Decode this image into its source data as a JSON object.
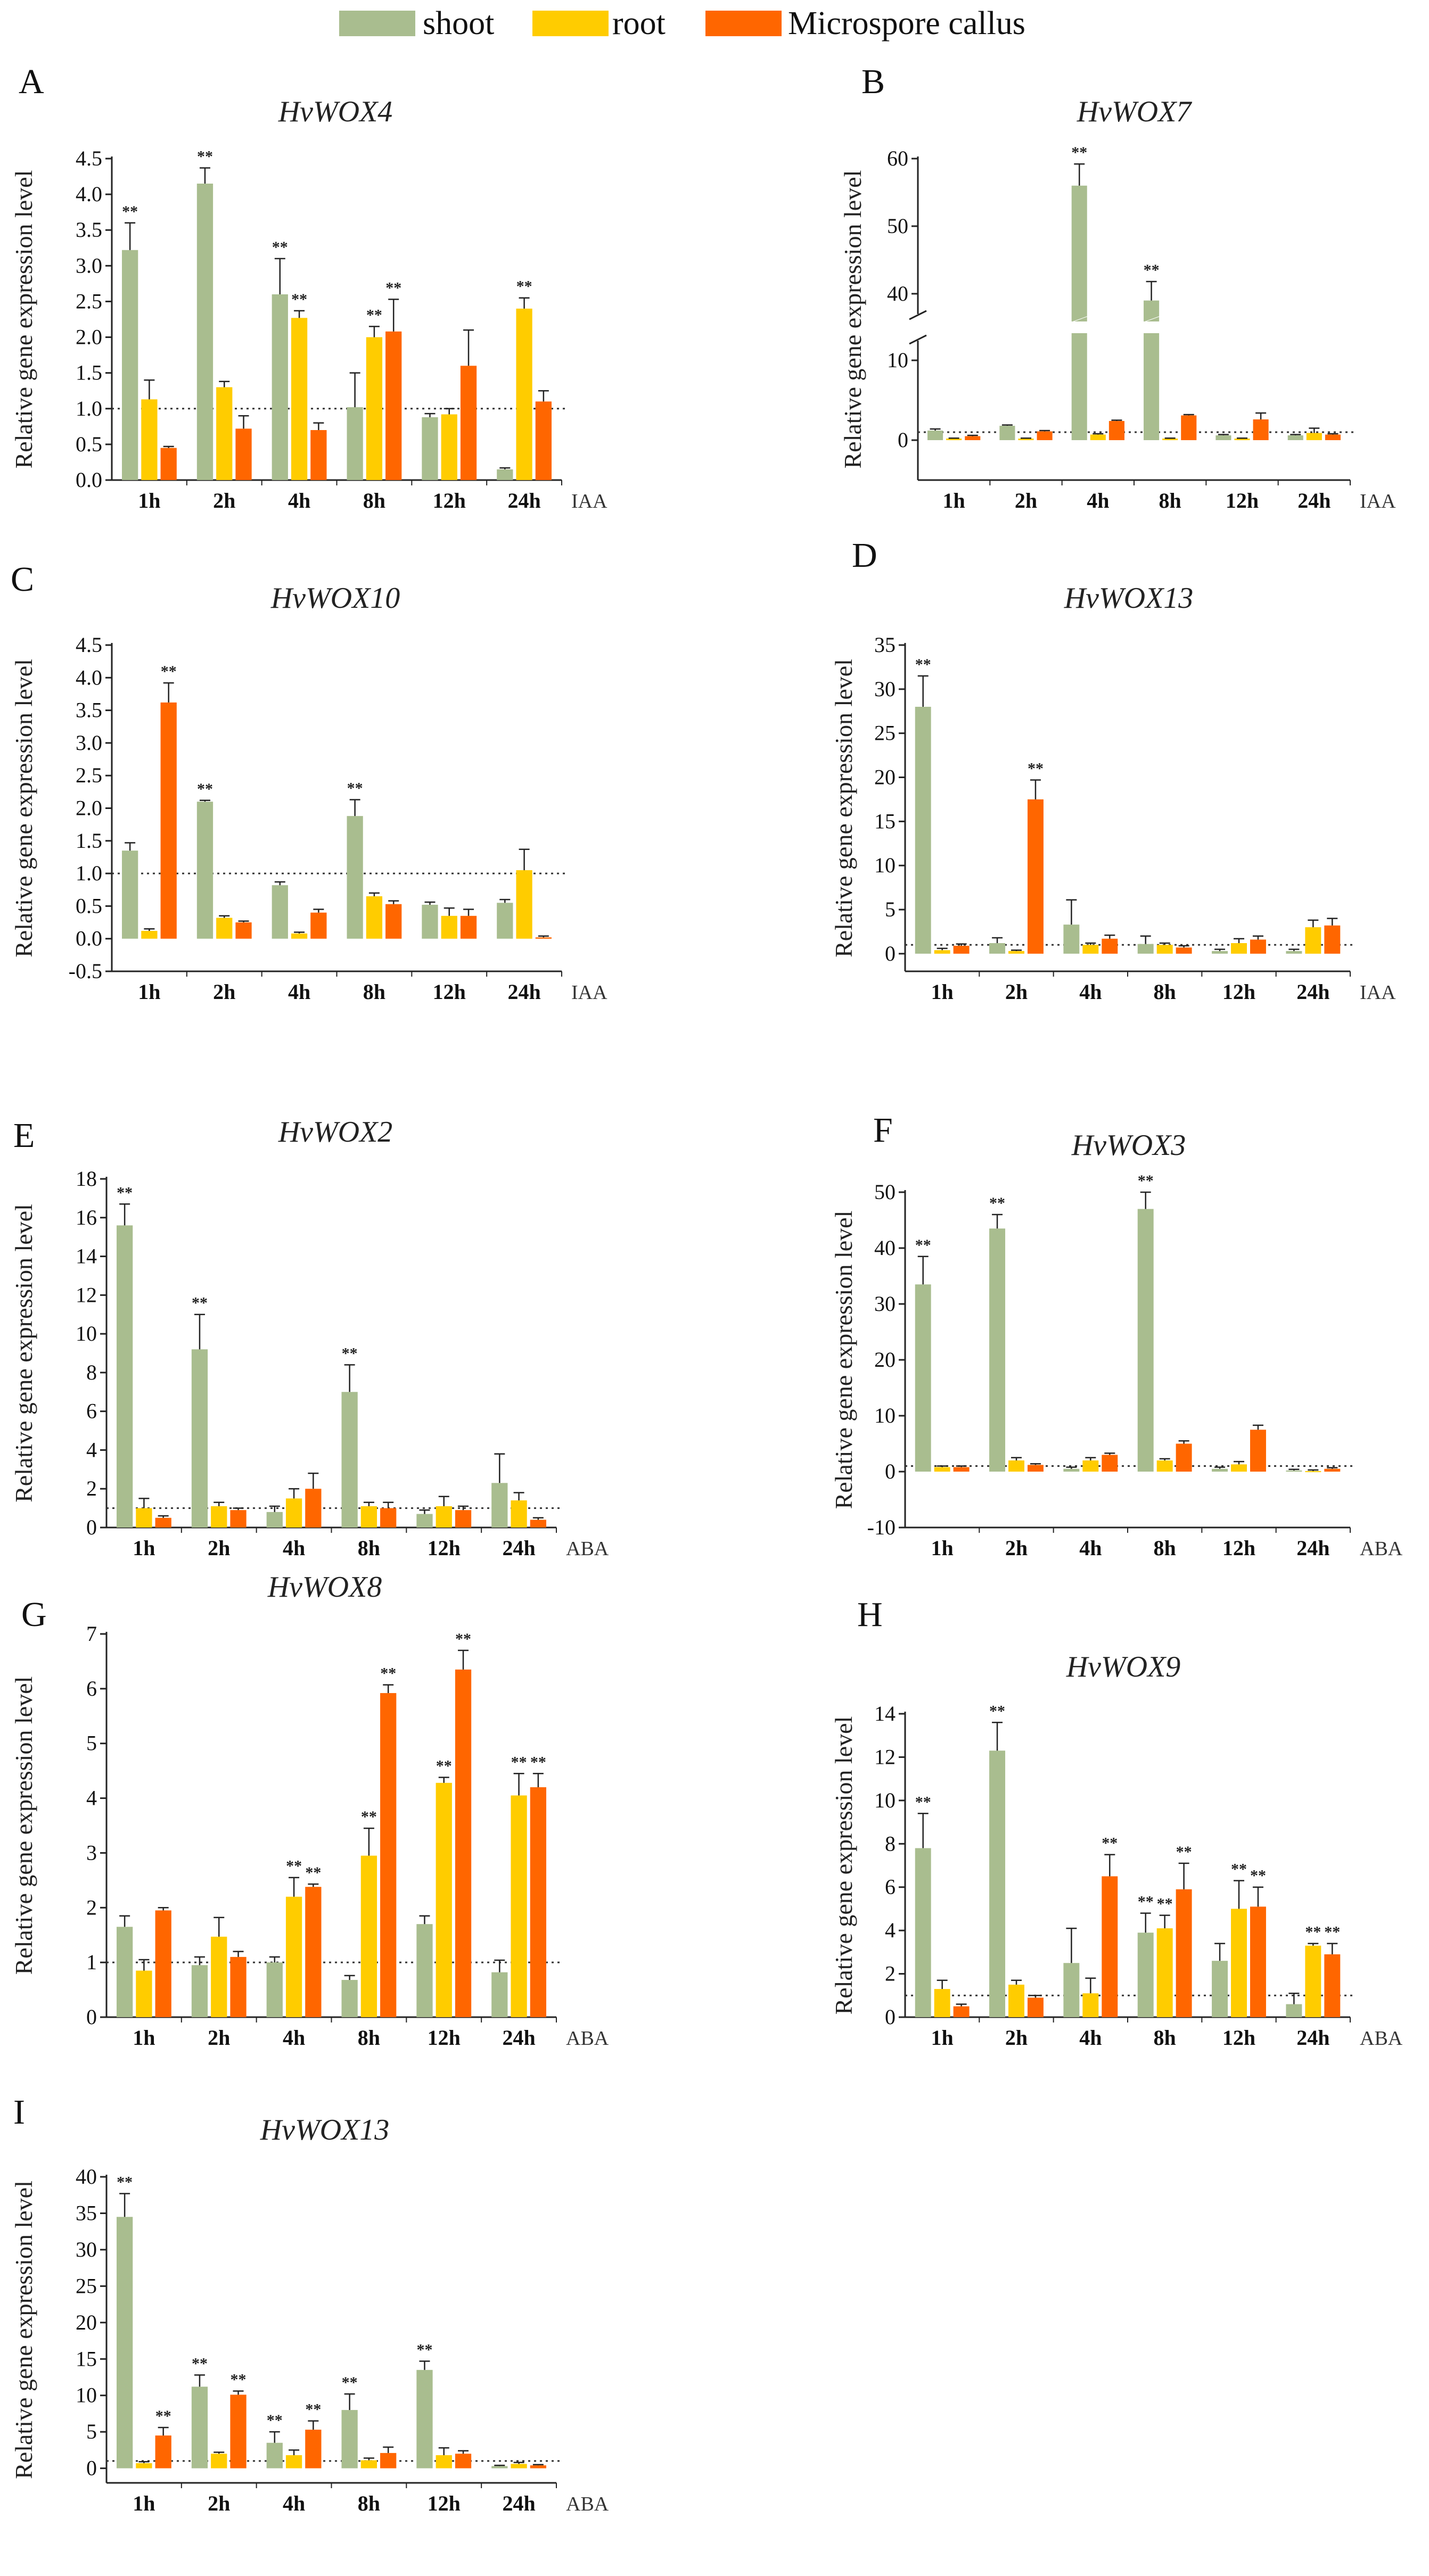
{
  "legend": [
    {
      "label": "shoot",
      "color": "#A9BD8F"
    },
    {
      "label": "root",
      "color": "#FFCC00"
    },
    {
      "label": "Microspore callus",
      "color": "#FF6600"
    }
  ],
  "chart_data": [
    {
      "type": "bar",
      "panel": "A",
      "title": "HvWOX4",
      "treatment": "IAA",
      "ylabel": "Relative gene expression level",
      "categories": [
        "1h",
        "2h",
        "4h",
        "8h",
        "12h",
        "24h"
      ],
      "ylim": [
        0,
        4.5
      ],
      "yticks": [
        "0.0",
        "0.5",
        "1.0",
        "1.5",
        "2.0",
        "2.5",
        "3.0",
        "3.5",
        "4.0",
        "4.5"
      ],
      "series": [
        {
          "name": "shoot",
          "values": [
            3.22,
            4.15,
            2.6,
            1.02,
            0.88,
            0.15
          ],
          "errors": [
            0.38,
            0.22,
            0.5,
            0.48,
            0.05,
            0.02
          ],
          "sig": [
            "**",
            "**",
            "**",
            "",
            "",
            ""
          ]
        },
        {
          "name": "root",
          "values": [
            1.13,
            1.3,
            2.27,
            2.0,
            0.92,
            2.4
          ],
          "errors": [
            0.27,
            0.08,
            0.1,
            0.15,
            0.08,
            0.15
          ],
          "sig": [
            "",
            "",
            "**",
            "**",
            "",
            "**"
          ]
        },
        {
          "name": "Microspore callus",
          "values": [
            0.45,
            0.72,
            0.7,
            2.08,
            1.6,
            1.1
          ],
          "errors": [
            0.02,
            0.18,
            0.1,
            0.45,
            0.5,
            0.15
          ],
          "sig": [
            "",
            "",
            "",
            "**",
            "",
            ""
          ]
        }
      ]
    },
    {
      "type": "bar",
      "panel": "B",
      "title": "HvWOX7",
      "treatment": "IAA",
      "ylabel": "Relative gene expression level",
      "categories": [
        "1h",
        "2h",
        "4h",
        "8h",
        "12h",
        "24h"
      ],
      "ylim": [
        -2,
        60
      ],
      "yticks": [
        "0",
        "10",
        "40",
        "50",
        "60"
      ],
      "axis_break": true,
      "series": [
        {
          "name": "shoot",
          "values": [
            1.2,
            1.8,
            56,
            39,
            0.6,
            0.6
          ],
          "errors": [
            0.2,
            0.1,
            3.2,
            2.8,
            0.1,
            0.1
          ],
          "sig": [
            "",
            "",
            "**",
            "**",
            "",
            ""
          ]
        },
        {
          "name": "root",
          "values": [
            0.2,
            0.2,
            0.7,
            0.2,
            0.2,
            0.9
          ],
          "errors": [
            0.05,
            0.05,
            0.1,
            0.05,
            0.05,
            0.6
          ],
          "sig": [
            "",
            "",
            "",
            "",
            "",
            ""
          ]
        },
        {
          "name": "Microspore callus",
          "values": [
            0.5,
            1.1,
            2.4,
            3.1,
            2.6,
            0.7
          ],
          "errors": [
            0.1,
            0.1,
            0.1,
            0.1,
            0.8,
            0.1
          ],
          "sig": [
            "",
            "",
            "",
            "",
            "",
            ""
          ]
        }
      ]
    },
    {
      "type": "bar",
      "panel": "C",
      "title": "HvWOX10",
      "treatment": "IAA",
      "ylabel": "Relative gene expression level",
      "categories": [
        "1h",
        "2h",
        "4h",
        "8h",
        "12h",
        "24h"
      ],
      "ylim": [
        -0.5,
        4.5
      ],
      "yticks": [
        "-0.5",
        "0.0",
        "0.5",
        "1.0",
        "1.5",
        "2.0",
        "2.5",
        "3.0",
        "3.5",
        "4.0",
        "4.5"
      ],
      "series": [
        {
          "name": "shoot",
          "values": [
            1.35,
            2.1,
            0.82,
            1.88,
            0.52,
            0.55
          ],
          "errors": [
            0.12,
            0.02,
            0.05,
            0.25,
            0.04,
            0.05
          ],
          "sig": [
            "",
            "**",
            "",
            "**",
            "",
            ""
          ]
        },
        {
          "name": "root",
          "values": [
            0.12,
            0.32,
            0.08,
            0.65,
            0.35,
            1.05
          ],
          "errors": [
            0.03,
            0.03,
            0.02,
            0.05,
            0.12,
            0.32
          ],
          "sig": [
            "",
            "",
            "",
            "",
            "",
            ""
          ]
        },
        {
          "name": "Microspore callus",
          "values": [
            3.62,
            0.25,
            0.4,
            0.53,
            0.35,
            0.02
          ],
          "errors": [
            0.3,
            0.02,
            0.05,
            0.05,
            0.1,
            0.02
          ],
          "sig": [
            "**",
            "",
            "",
            "",
            "",
            ""
          ]
        }
      ]
    },
    {
      "type": "bar",
      "panel": "D",
      "title": "HvWOX13",
      "treatment": "IAA",
      "ylabel": "Relative gene expression level",
      "categories": [
        "1h",
        "2h",
        "4h",
        "8h",
        "12h",
        "24h"
      ],
      "ylim": [
        -2,
        35
      ],
      "yticks": [
        "0",
        "5",
        "10",
        "15",
        "20",
        "25",
        "30",
        "35"
      ],
      "series": [
        {
          "name": "shoot",
          "values": [
            28,
            1.2,
            3.3,
            1.1,
            0.3,
            0.3
          ],
          "errors": [
            3.5,
            0.6,
            2.8,
            0.9,
            0.2,
            0.2
          ],
          "sig": [
            "**",
            "",
            "",
            "",
            "",
            ""
          ]
        },
        {
          "name": "root",
          "values": [
            0.4,
            0.3,
            1,
            1,
            1.2,
            3
          ],
          "errors": [
            0.2,
            0.1,
            0.2,
            0.2,
            0.5,
            0.8
          ],
          "sig": [
            "",
            "",
            "",
            "",
            "",
            ""
          ]
        },
        {
          "name": "Microspore callus",
          "values": [
            0.9,
            17.5,
            1.7,
            0.7,
            1.6,
            3.2
          ],
          "errors": [
            0.2,
            2.2,
            0.4,
            0.2,
            0.4,
            0.8
          ],
          "sig": [
            "",
            "**",
            "",
            "",
            "",
            ""
          ]
        }
      ]
    },
    {
      "type": "bar",
      "panel": "E",
      "title": "HvWOX2",
      "treatment": "ABA",
      "ylabel": "Relative gene expression level",
      "categories": [
        "1h",
        "2h",
        "4h",
        "8h",
        "12h",
        "24h"
      ],
      "ylim": [
        0,
        18
      ],
      "yticks": [
        "0",
        "2",
        "4",
        "6",
        "8",
        "10",
        "12",
        "14",
        "16",
        "18"
      ],
      "series": [
        {
          "name": "shoot",
          "values": [
            15.6,
            9.2,
            0.8,
            7,
            0.7,
            2.3
          ],
          "errors": [
            1.1,
            1.8,
            0.3,
            1.4,
            0.2,
            1.5
          ],
          "sig": [
            "**",
            "**",
            "",
            "**",
            "",
            ""
          ]
        },
        {
          "name": "root",
          "values": [
            1,
            1.1,
            1.5,
            1.1,
            1.1,
            1.4
          ],
          "errors": [
            0.5,
            0.2,
            0.5,
            0.2,
            0.5,
            0.4
          ],
          "sig": [
            "",
            "",
            "",
            "",
            "",
            ""
          ]
        },
        {
          "name": "Microspore callus",
          "values": [
            0.5,
            0.9,
            2,
            1,
            0.9,
            0.4
          ],
          "errors": [
            0.1,
            0.1,
            0.8,
            0.3,
            0.2,
            0.1
          ],
          "sig": [
            "",
            "",
            "",
            "",
            "",
            ""
          ]
        }
      ]
    },
    {
      "type": "bar",
      "panel": "F",
      "title": "HvWOX3",
      "treatment": "ABA",
      "ylabel": "Relative gene expression level",
      "categories": [
        "1h",
        "2h",
        "4h",
        "8h",
        "12h",
        "24h"
      ],
      "ylim": [
        -10,
        50
      ],
      "yticks": [
        "-10",
        "0",
        "10",
        "20",
        "30",
        "40",
        "50"
      ],
      "series": [
        {
          "name": "shoot",
          "values": [
            33.5,
            43.5,
            0.5,
            47,
            0.5,
            0.2
          ],
          "errors": [
            5,
            2.5,
            0.3,
            3,
            0.3,
            0.2
          ],
          "sig": [
            "**",
            "**",
            "",
            "**",
            "",
            ""
          ]
        },
        {
          "name": "root",
          "values": [
            0.8,
            2,
            2,
            2,
            1.3,
            0.1
          ],
          "errors": [
            0.2,
            0.5,
            0.5,
            0.3,
            0.5,
            0.2
          ],
          "sig": [
            "",
            "",
            "",
            "",
            "",
            ""
          ]
        },
        {
          "name": "Microspore callus",
          "values": [
            0.8,
            1.2,
            3,
            5,
            7.5,
            0.5
          ],
          "errors": [
            0.2,
            0.2,
            0.3,
            0.5,
            0.8,
            0.2
          ],
          "sig": [
            "",
            "",
            "",
            "",
            "",
            ""
          ]
        }
      ]
    },
    {
      "type": "bar",
      "panel": "G",
      "title": "HvWOX8",
      "treatment": "ABA",
      "ylabel": "Relative gene expression level",
      "categories": [
        "1h",
        "2h",
        "4h",
        "8h",
        "12h",
        "24h"
      ],
      "ylim": [
        0,
        7
      ],
      "yticks": [
        "0",
        "1",
        "2",
        "3",
        "4",
        "5",
        "6",
        "7"
      ],
      "series": [
        {
          "name": "shoot",
          "values": [
            1.65,
            0.95,
            1,
            0.68,
            1.7,
            0.82
          ],
          "errors": [
            0.2,
            0.15,
            0.1,
            0.08,
            0.15,
            0.22
          ],
          "sig": [
            "",
            "",
            "",
            "",
            "",
            ""
          ]
        },
        {
          "name": "root",
          "values": [
            0.85,
            1.47,
            2.2,
            2.95,
            4.28,
            4.05
          ],
          "errors": [
            0.2,
            0.35,
            0.35,
            0.5,
            0.1,
            0.4
          ],
          "sig": [
            "",
            "",
            "**",
            "**",
            "**",
            "**"
          ]
        },
        {
          "name": "Microspore callus",
          "values": [
            1.95,
            1.1,
            2.38,
            5.92,
            6.35,
            4.2
          ],
          "errors": [
            0.05,
            0.1,
            0.05,
            0.15,
            0.35,
            0.25
          ],
          "sig": [
            "",
            "",
            "**",
            "**",
            "**",
            "**"
          ]
        }
      ]
    },
    {
      "type": "bar",
      "panel": "H",
      "title": "HvWOX9",
      "treatment": "ABA",
      "ylabel": "Relative gene expression level",
      "categories": [
        "1h",
        "2h",
        "4h",
        "8h",
        "12h",
        "24h"
      ],
      "ylim": [
        0,
        14
      ],
      "yticks": [
        "0",
        "2",
        "4",
        "6",
        "8",
        "10",
        "12",
        "14"
      ],
      "series": [
        {
          "name": "shoot",
          "values": [
            7.8,
            12.3,
            2.5,
            3.9,
            2.6,
            0.6
          ],
          "errors": [
            1.6,
            1.3,
            1.6,
            0.9,
            0.8,
            0.5
          ],
          "sig": [
            "**",
            "**",
            "",
            "**",
            "",
            ""
          ]
        },
        {
          "name": "root",
          "values": [
            1.3,
            1.5,
            1.1,
            4.1,
            5,
            3.3
          ],
          "errors": [
            0.4,
            0.2,
            0.7,
            0.6,
            1.3,
            0.1
          ],
          "sig": [
            "",
            "",
            "",
            "**",
            "**",
            "**"
          ]
        },
        {
          "name": "Microspore callus",
          "values": [
            0.5,
            0.9,
            6.5,
            5.9,
            5.1,
            2.9
          ],
          "errors": [
            0.1,
            0.1,
            1,
            1.2,
            0.9,
            0.5
          ],
          "sig": [
            "",
            "",
            "**",
            "**",
            "**",
            "**"
          ]
        }
      ]
    },
    {
      "type": "bar",
      "panel": "I",
      "title": "HvWOX13",
      "treatment": "ABA",
      "ylabel": "Relative gene expression level",
      "categories": [
        "1h",
        "2h",
        "4h",
        "8h",
        "12h",
        "24h"
      ],
      "ylim": [
        -2,
        40
      ],
      "yticks": [
        "0",
        "5",
        "10",
        "15",
        "20",
        "25",
        "30",
        "35",
        "40"
      ],
      "series": [
        {
          "name": "shoot",
          "values": [
            34.5,
            11.2,
            3.5,
            8,
            13.5,
            0.3
          ],
          "errors": [
            3.2,
            1.6,
            1.5,
            2.2,
            1.2,
            0.1
          ],
          "sig": [
            "**",
            "**",
            "**",
            "**",
            "**",
            ""
          ]
        },
        {
          "name": "root",
          "values": [
            0.7,
            2,
            1.8,
            1.1,
            1.8,
            0.6
          ],
          "errors": [
            0.2,
            0.2,
            0.7,
            0.3,
            1,
            0.2
          ],
          "sig": [
            "",
            "",
            "",
            "",
            "",
            ""
          ]
        },
        {
          "name": "Microspore callus",
          "values": [
            4.5,
            10.1,
            5.3,
            2.1,
            2,
            0.4
          ],
          "errors": [
            1.1,
            0.5,
            1.2,
            0.8,
            0.4,
            0.1
          ],
          "sig": [
            "**",
            "**",
            "**",
            "",
            "",
            ""
          ]
        }
      ]
    }
  ]
}
